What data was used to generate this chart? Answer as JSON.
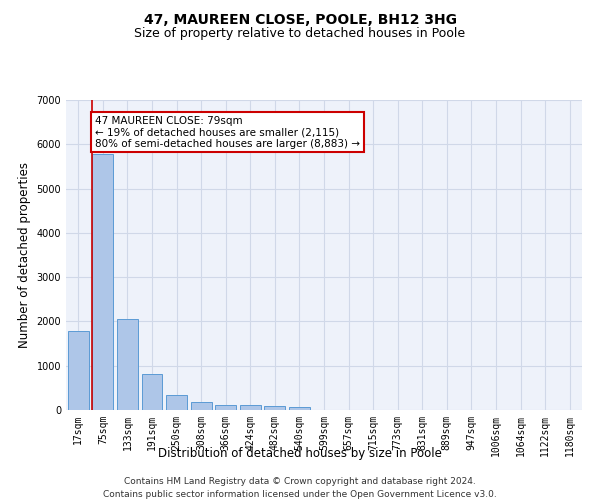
{
  "title": "47, MAUREEN CLOSE, POOLE, BH12 3HG",
  "subtitle": "Size of property relative to detached houses in Poole",
  "xlabel": "Distribution of detached houses by size in Poole",
  "ylabel": "Number of detached properties",
  "bar_labels": [
    "17sqm",
    "75sqm",
    "133sqm",
    "191sqm",
    "250sqm",
    "308sqm",
    "366sqm",
    "424sqm",
    "482sqm",
    "540sqm",
    "599sqm",
    "657sqm",
    "715sqm",
    "773sqm",
    "831sqm",
    "889sqm",
    "947sqm",
    "1006sqm",
    "1064sqm",
    "1122sqm",
    "1180sqm"
  ],
  "bar_values": [
    1780,
    5780,
    2060,
    820,
    345,
    185,
    120,
    110,
    100,
    75,
    0,
    0,
    0,
    0,
    0,
    0,
    0,
    0,
    0,
    0,
    0
  ],
  "bar_color": "#aec6e8",
  "bar_edge_color": "#5b9bd5",
  "property_bin_index": 1,
  "annotation_line1": "47 MAUREEN CLOSE: 79sqm",
  "annotation_line2": "← 19% of detached houses are smaller (2,115)",
  "annotation_line3": "80% of semi-detached houses are larger (8,883) →",
  "annotation_box_color": "#ffffff",
  "annotation_box_edge_color": "#cc0000",
  "vline_color": "#cc0000",
  "ylim": [
    0,
    7000
  ],
  "yticks": [
    0,
    1000,
    2000,
    3000,
    4000,
    5000,
    6000,
    7000
  ],
  "grid_color": "#d0d8e8",
  "background_color": "#eef2fa",
  "footer_line1": "Contains HM Land Registry data © Crown copyright and database right 2024.",
  "footer_line2": "Contains public sector information licensed under the Open Government Licence v3.0.",
  "title_fontsize": 10,
  "subtitle_fontsize": 9,
  "axis_label_fontsize": 8.5,
  "tick_fontsize": 7,
  "annotation_fontsize": 7.5,
  "footer_fontsize": 6.5
}
